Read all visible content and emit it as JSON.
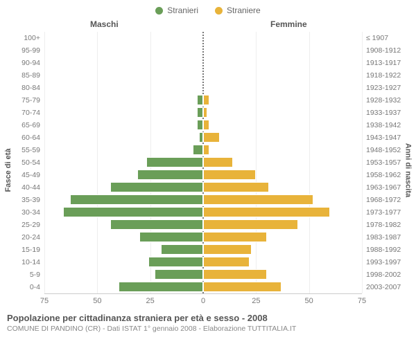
{
  "legend": {
    "male": {
      "label": "Stranieri",
      "color": "#6a9e58"
    },
    "female": {
      "label": "Straniere",
      "color": "#e8b33a"
    }
  },
  "headers": {
    "male": "Maschi",
    "female": "Femmine"
  },
  "axis_titles": {
    "left": "Fasce di età",
    "right": "Anni di nascita"
  },
  "chart": {
    "type": "population-pyramid",
    "xmax": 75,
    "xticks_left": [
      75,
      50,
      25,
      0
    ],
    "xticks_right": [
      0,
      25,
      50,
      75
    ],
    "bar_fill_male": "#6a9e58",
    "bar_fill_female": "#e8b33a",
    "bar_border": "#ffffff",
    "grid_color": "#eeeeee",
    "rows": [
      {
        "age": "100+",
        "birth": "≤ 1907",
        "m": 0,
        "f": 0
      },
      {
        "age": "95-99",
        "birth": "1908-1912",
        "m": 0,
        "f": 0
      },
      {
        "age": "90-94",
        "birth": "1913-1917",
        "m": 0,
        "f": 0
      },
      {
        "age": "85-89",
        "birth": "1918-1922",
        "m": 0,
        "f": 0
      },
      {
        "age": "80-84",
        "birth": "1923-1927",
        "m": 0,
        "f": 0
      },
      {
        "age": "75-79",
        "birth": "1928-1932",
        "m": 3,
        "f": 3
      },
      {
        "age": "70-74",
        "birth": "1933-1937",
        "m": 3,
        "f": 2
      },
      {
        "age": "65-69",
        "birth": "1938-1942",
        "m": 3,
        "f": 3
      },
      {
        "age": "60-64",
        "birth": "1943-1947",
        "m": 2,
        "f": 8
      },
      {
        "age": "55-59",
        "birth": "1948-1952",
        "m": 5,
        "f": 3
      },
      {
        "age": "50-54",
        "birth": "1953-1957",
        "m": 27,
        "f": 14
      },
      {
        "age": "45-49",
        "birth": "1958-1962",
        "m": 31,
        "f": 25
      },
      {
        "age": "40-44",
        "birth": "1963-1967",
        "m": 44,
        "f": 31
      },
      {
        "age": "35-39",
        "birth": "1968-1972",
        "m": 63,
        "f": 52
      },
      {
        "age": "30-34",
        "birth": "1973-1977",
        "m": 66,
        "f": 60
      },
      {
        "age": "25-29",
        "birth": "1978-1982",
        "m": 44,
        "f": 45
      },
      {
        "age": "20-24",
        "birth": "1983-1987",
        "m": 30,
        "f": 30
      },
      {
        "age": "15-19",
        "birth": "1988-1992",
        "m": 20,
        "f": 23
      },
      {
        "age": "10-14",
        "birth": "1993-1997",
        "m": 26,
        "f": 22
      },
      {
        "age": "5-9",
        "birth": "1998-2002",
        "m": 23,
        "f": 30
      },
      {
        "age": "0-4",
        "birth": "2003-2007",
        "m": 40,
        "f": 37
      }
    ]
  },
  "footer": {
    "title": "Popolazione per cittadinanza straniera per età e sesso - 2008",
    "subtitle": "COMUNE DI PANDINO (CR) - Dati ISTAT 1° gennaio 2008 - Elaborazione TUTTITALIA.IT"
  }
}
